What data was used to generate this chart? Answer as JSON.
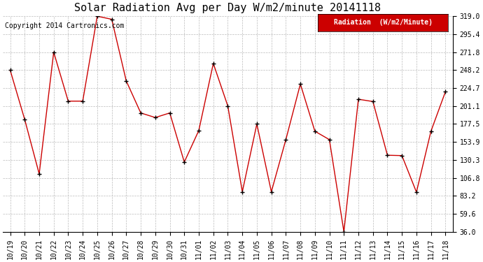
{
  "title": "Solar Radiation Avg per Day W/m2/minute 20141118",
  "copyright": "Copyright 2014 Cartronics.com",
  "legend_label": "Radiation  (W/m2/Minute)",
  "x_labels": [
    "10/19",
    "10/20",
    "10/21",
    "10/22",
    "10/23",
    "10/24",
    "10/25",
    "10/26",
    "10/27",
    "10/28",
    "10/29",
    "10/30",
    "10/31",
    "11/01",
    "11/02",
    "11/03",
    "11/04",
    "11/05",
    "11/06",
    "11/07",
    "11/08",
    "11/09",
    "11/10",
    "11/11",
    "11/12",
    "11/13",
    "11/14",
    "11/15",
    "11/16",
    "11/17",
    "11/18"
  ],
  "y_values": [
    248.2,
    183.5,
    112.0,
    271.8,
    207.5,
    207.5,
    319.0,
    315.0,
    234.0,
    192.0,
    186.0,
    192.0,
    127.5,
    169.0,
    257.0,
    201.1,
    88.5,
    177.5,
    88.5,
    157.0,
    230.0,
    168.0,
    157.0,
    36.0,
    210.0,
    207.0,
    136.5,
    136.0,
    88.0,
    168.0,
    220.0
  ],
  "line_color": "#cc0000",
  "marker_color": "#000000",
  "background_color": "#ffffff",
  "grid_color": "#bbbbbb",
  "ylim": [
    36.0,
    319.0
  ],
  "yticks": [
    36.0,
    59.6,
    83.2,
    106.8,
    130.3,
    153.9,
    177.5,
    201.1,
    224.7,
    248.2,
    271.8,
    295.4,
    319.0
  ],
  "title_fontsize": 11,
  "copyright_fontsize": 7,
  "tick_fontsize": 7,
  "legend_bg": "#cc0000",
  "legend_text_color": "#ffffff",
  "legend_fontsize": 7
}
